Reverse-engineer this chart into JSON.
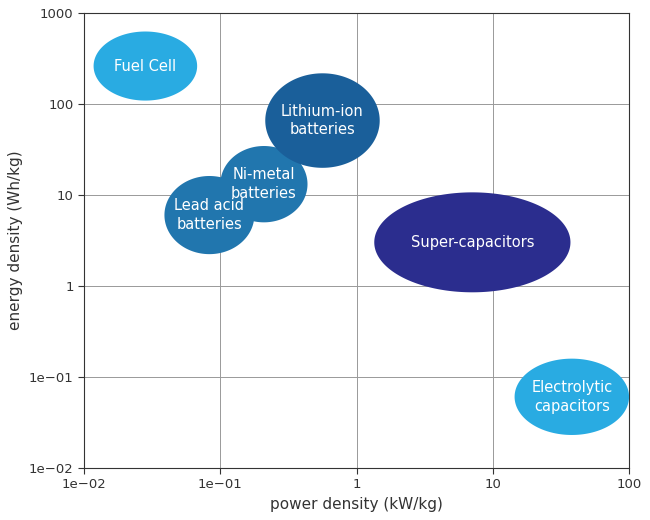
{
  "title": "",
  "xlabel": "power density (kW/kg)",
  "ylabel": "energy density (Wh/kg)",
  "xlim": [
    0.01,
    100
  ],
  "ylim": [
    0.01,
    1000
  ],
  "background_color": "#ffffff",
  "grid_color": "#999999",
  "ellipses": [
    {
      "label": "Fuel Cell",
      "x_center_log": -1.55,
      "y_center_log": 2.42,
      "x_width_log": 0.38,
      "y_width_log": 0.38,
      "color": "#29abe2",
      "text_color": "#ffffff",
      "fontsize": 10.5
    },
    {
      "label": "Lead acid\nbatteries",
      "x_center_log": -1.08,
      "y_center_log": 0.78,
      "x_width_log": 0.33,
      "y_width_log": 0.43,
      "color": "#2176ae",
      "text_color": "#ffffff",
      "fontsize": 10.5
    },
    {
      "label": "Ni-metal\nbatteries",
      "x_center_log": -0.68,
      "y_center_log": 1.12,
      "x_width_log": 0.32,
      "y_width_log": 0.42,
      "color": "#2176ae",
      "text_color": "#ffffff",
      "fontsize": 10.5
    },
    {
      "label": "Lithium-ion\nbatteries",
      "x_center_log": -0.25,
      "y_center_log": 1.82,
      "x_width_log": 0.42,
      "y_width_log": 0.52,
      "color": "#1a5f9a",
      "text_color": "#ffffff",
      "fontsize": 10.5
    },
    {
      "label": "Super-capacitors",
      "x_center_log": 0.85,
      "y_center_log": 0.48,
      "x_width_log": 0.72,
      "y_width_log": 0.55,
      "color": "#2b2d8e",
      "text_color": "#ffffff",
      "fontsize": 10.5
    },
    {
      "label": "Electrolytic\ncapacitors",
      "x_center_log": 1.58,
      "y_center_log": -1.22,
      "x_width_log": 0.42,
      "y_width_log": 0.42,
      "color": "#29abe2",
      "text_color": "#ffffff",
      "fontsize": 10.5
    }
  ]
}
